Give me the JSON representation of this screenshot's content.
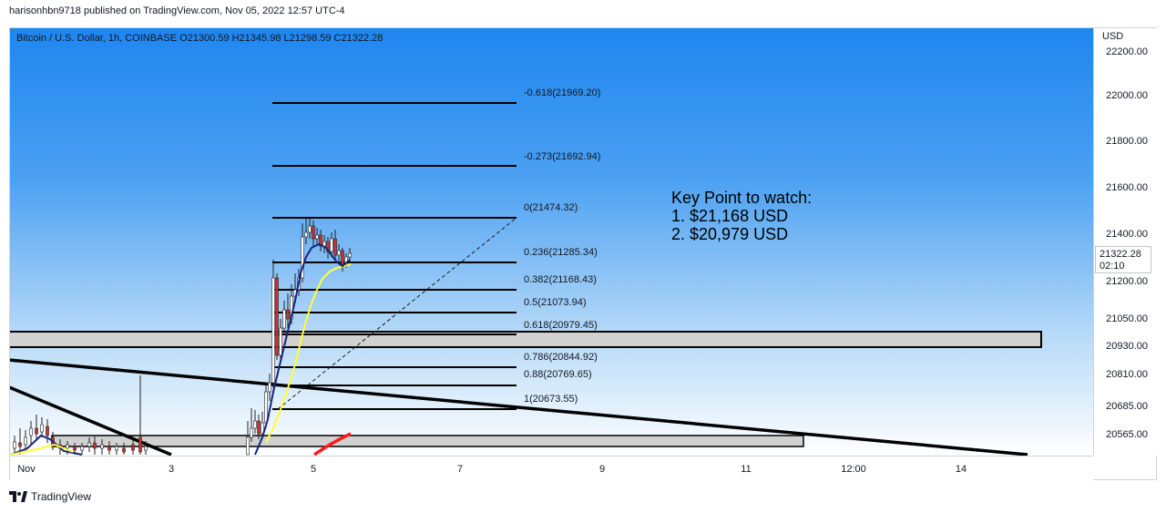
{
  "header": {
    "published_text": "harisonhbn9718 published on TradingView.com, Nov 05, 2022 12:57 UTC-4"
  },
  "symbol": {
    "info": "Bitcoin / U.S. Dollar, 1h, COINBASE  O21300.59  H21345.98  L21298.59  C21322.28"
  },
  "price_scale": {
    "currency": "USD",
    "labels": [
      "22200.00",
      "22000.00",
      "21800.00",
      "21600.00",
      "21400.00",
      "21200.00",
      "21050.00",
      "20930.00",
      "20810.00",
      "20685.00",
      "20565.00"
    ],
    "current_price": "21322.28",
    "countdown": "02:10"
  },
  "time_scale": {
    "labels": [
      "Nov",
      "3",
      "5",
      "7",
      "9",
      "11",
      "12:00",
      "14"
    ]
  },
  "fib_levels": [
    "-0.618(21969.20)",
    "-0.273(21692.94)",
    "0(21474.32)",
    "0.236(21285.34)",
    "0.382(21168.43)",
    "0.5(21073.94)",
    "0.618(20979.45)",
    "0.786(20844.92)",
    "0.88(20769.65)",
    "1(20673.55)"
  ],
  "annotation": {
    "text": "Key Point to watch:\n1. $21,168 USD\n2. $20,979 USD"
  },
  "footer": {
    "brand": "TradingView"
  },
  "colors": {
    "accent_blue": "#1f86f0",
    "up_candle": "#ffffff",
    "down_candle": "#d32f2f",
    "ma_fast": "#1a237e",
    "ma_slow": "#ffff33",
    "red_curve": "#ff1a1a"
  }
}
